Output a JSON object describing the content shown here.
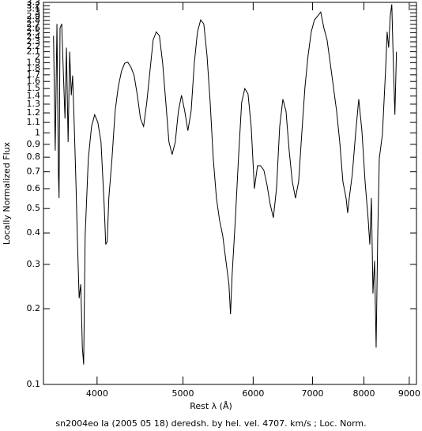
{
  "chart_data": {
    "type": "line",
    "xlabel": "Rest λ (Å)",
    "ylabel": "Locally Normalized Flux",
    "caption": "sn2004eo Ia (2005 05 18) deredsh. by hel. vel.  4707. km/s ;  Loc. Norm.",
    "xscale": "log",
    "yscale": "log",
    "color": "#000000",
    "xlim": [
      3480,
      9170
    ],
    "xticks": [
      4000,
      5000,
      6000,
      7000,
      8000,
      9000
    ],
    "ylim": [
      0.1,
      3.3
    ],
    "yticks": [
      0.1,
      0.2,
      0.3,
      0.4,
      0.5,
      0.6,
      0.7,
      0.8,
      0.9,
      1,
      1.1,
      1.2,
      1.3,
      1.4,
      1.5,
      1.6,
      1.7,
      1.8,
      1.9,
      2,
      2.1,
      2.2,
      2.3,
      2.4,
      2.5,
      2.6,
      2.7,
      2.8,
      2.9,
      3,
      3.1,
      3.2,
      3.3
    ],
    "x": [
      3572,
      3588,
      3604,
      3618,
      3624,
      3633,
      3649,
      3664,
      3680,
      3694,
      3710,
      3725,
      3741,
      3754,
      3770,
      3786,
      3802,
      3818,
      3834,
      3850,
      3863,
      3878,
      3910,
      3943,
      3975,
      4008,
      4041,
      4074,
      4091,
      4107,
      4124,
      4158,
      4192,
      4226,
      4262,
      4297,
      4332,
      4369,
      4404,
      4441,
      4477,
      4514,
      4551,
      4589,
      4627,
      4665,
      4703,
      4743,
      4782,
      4821,
      4861,
      4901,
      4941,
      4981,
      5023,
      5064,
      5107,
      5149,
      5192,
      5235,
      5278,
      5322,
      5366,
      5409,
      5454,
      5498,
      5544,
      5590,
      5634,
      5657,
      5680,
      5728,
      5775,
      5823,
      5871,
      5920,
      5969,
      6019,
      6068,
      6118,
      6169,
      6220,
      6271,
      6323,
      6375,
      6428,
      6481,
      6534,
      6588,
      6642,
      6697,
      6752,
      6807,
      6864,
      6920,
      6977,
      7035,
      7093,
      7151,
      7210,
      7270,
      7330,
      7391,
      7452,
      7513,
      7575,
      7638,
      7669,
      7701,
      7764,
      7828,
      7893,
      7958,
      8024,
      8090,
      8123,
      8157,
      8190,
      8224,
      8258,
      8292,
      8326,
      8394,
      8462,
      8497,
      8531,
      8566,
      8601,
      8635,
      8670,
      8706
    ],
    "values": [
      2.43,
      0.85,
      2.71,
      0.69,
      0.55,
      2.61,
      2.71,
      1.76,
      1.14,
      2.18,
      0.92,
      2.1,
      1.41,
      1.69,
      1.06,
      0.64,
      0.36,
      0.22,
      0.25,
      0.14,
      0.12,
      0.39,
      0.79,
      1.06,
      1.18,
      1.1,
      0.92,
      0.52,
      0.36,
      0.37,
      0.55,
      0.79,
      1.22,
      1.52,
      1.76,
      1.89,
      1.91,
      1.82,
      1.69,
      1.41,
      1.14,
      1.06,
      1.32,
      1.76,
      2.34,
      2.52,
      2.43,
      1.89,
      1.32,
      0.92,
      0.82,
      0.92,
      1.22,
      1.41,
      1.22,
      1.02,
      1.22,
      1.89,
      2.52,
      2.81,
      2.71,
      2.03,
      1.32,
      0.79,
      0.55,
      0.45,
      0.39,
      0.31,
      0.25,
      0.19,
      0.27,
      0.45,
      0.79,
      1.32,
      1.5,
      1.43,
      1.06,
      0.6,
      0.74,
      0.74,
      0.71,
      0.62,
      0.52,
      0.46,
      0.6,
      1.06,
      1.36,
      1.22,
      0.85,
      0.64,
      0.55,
      0.64,
      0.99,
      1.52,
      2.03,
      2.52,
      2.81,
      2.91,
      3.02,
      2.61,
      2.34,
      1.89,
      1.52,
      1.22,
      0.92,
      0.64,
      0.55,
      0.48,
      0.55,
      0.69,
      0.99,
      1.36,
      1.02,
      0.64,
      0.45,
      0.36,
      0.55,
      0.23,
      0.31,
      0.14,
      0.39,
      0.79,
      0.99,
      1.76,
      2.52,
      2.18,
      2.91,
      3.24,
      1.89,
      1.18,
      2.1
    ]
  }
}
